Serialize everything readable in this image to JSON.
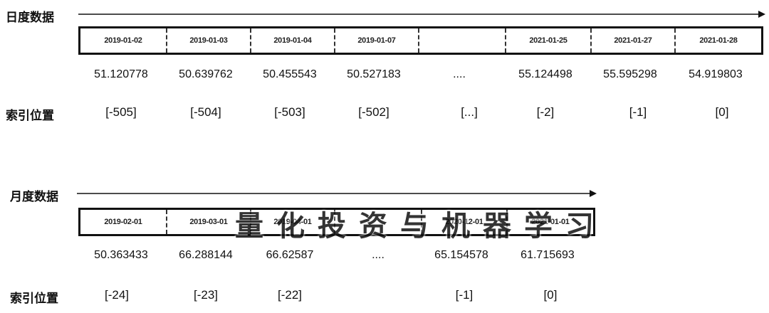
{
  "daily": {
    "section_label": "日度数据",
    "index_label": "索引位置",
    "dates": [
      "2019-01-02",
      "2019-01-03",
      "2019-01-04",
      "2019-01-07",
      "",
      "2021-01-25",
      "2021-01-27",
      "2021-01-28"
    ],
    "values": [
      "51.120778",
      "50.639762",
      "50.455543",
      "50.527183",
      "....",
      "55.124498",
      "55.595298",
      "54.919803"
    ],
    "indices": [
      "[-505]",
      "[-504]",
      "[-503]",
      "[-502]",
      "[...]",
      "[-2]",
      "[-1]",
      "[0]"
    ]
  },
  "monthly": {
    "section_label": "月度数据",
    "index_label": "索引位置",
    "dates": [
      "2019-02-01",
      "2019-03-01",
      "2019-04-01",
      "",
      "2020-12-01",
      "2021-01-01"
    ],
    "values": [
      "50.363433",
      "66.288144",
      "66.62587",
      "....",
      "65.154578",
      "61.715693"
    ],
    "indices": [
      "[-24]",
      "[-23]",
      "[-22]",
      "",
      "[-1]",
      "[0]"
    ]
  },
  "watermark": "量化投资与机器学习"
}
